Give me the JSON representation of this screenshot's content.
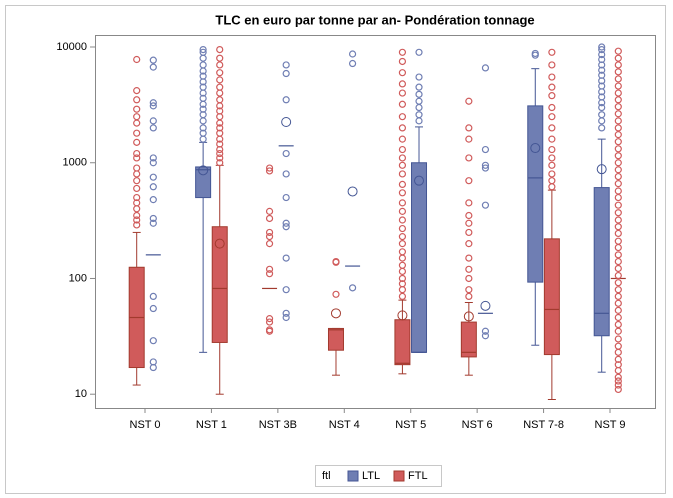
{
  "chart_data": {
    "type": "box",
    "title": "TLC en euro par tonne par an- Pondération tonnage",
    "categories": [
      "NST 0",
      "NST 1",
      "NST 3B",
      "NST 4",
      "NST 5",
      "NST 6",
      "NST 7-8",
      "NST 9"
    ],
    "log_scale": true,
    "ylim": [
      7.6,
      12700
    ],
    "yticks": [
      10,
      100,
      1000,
      10000
    ],
    "legend_title": "ftl",
    "legend_position": "bottom",
    "series": [
      {
        "name": "LTL",
        "color": "#6f7eb3",
        "line_color": "#445694",
        "values": [
          {
            "median": 160,
            "outliers": [
              7700,
              6700,
              3300,
              3100,
              2300,
              2000,
              1100,
              1000,
              750,
              620,
              480,
              330,
              300,
              70,
              55,
              29,
              19,
              17
            ]
          },
          {
            "low": 23,
            "q1": 500,
            "median": 870,
            "q3": 920,
            "high": 1500,
            "mean": 860,
            "outliers": [
              1600,
              1800,
              2000,
              2300,
              2600,
              2900,
              3200,
              3600,
              4000,
              4500,
              5000,
              5600,
              6200,
              7000,
              8000,
              9000,
              9500
            ]
          },
          {
            "median": 1400,
            "mean": 2250,
            "outliers": [
              7000,
              5900,
              3500,
              1200,
              800,
              500,
              300,
              280,
              150,
              80,
              50,
              46
            ]
          },
          {
            "median": 128,
            "mean": 565,
            "outliers": [
              8700,
              7200,
              83
            ]
          },
          {
            "low": 23,
            "q1": 23,
            "median": 23,
            "q3": 1000,
            "high": 2040,
            "mean": 700,
            "outliers": [
              2300,
              2600,
              3000,
              3400,
              3900,
              4500,
              5500,
              9000
            ]
          },
          {
            "median": 50,
            "mean": 58,
            "outliers": [
              6600,
              1300,
              950,
              900,
              430,
              35,
              32
            ]
          },
          {
            "low": 26.5,
            "q1": 93,
            "median": 740,
            "q3": 3100,
            "high": 6500,
            "mean": 1340,
            "outliers": [
              8500,
              8800
            ]
          },
          {
            "low": 15.5,
            "q1": 32,
            "median": 50,
            "q3": 610,
            "high": 1600,
            "mean": 880,
            "outliers": [
              2000,
              2300,
              2600,
              3000,
              3300,
              3700,
              4100,
              4600,
              5100,
              5700,
              6300,
              7000,
              7800,
              8600,
              9500,
              10000
            ]
          }
        ]
      },
      {
        "name": "FTL",
        "color": "#d05b5b",
        "line_color": "#a23a2e",
        "values": [
          {
            "low": 12,
            "q1": 17,
            "median": 46,
            "q3": 125,
            "high": 250,
            "outliers": [
              7800,
              4200,
              3500,
              2900,
              2500,
              2200,
              1800,
              1500,
              1200,
              1100,
              900,
              800,
              700,
              600,
              500,
              450,
              400,
              350,
              320,
              290
            ]
          },
          {
            "low": 10,
            "q1": 28,
            "median": 82,
            "q3": 280,
            "high": 950,
            "mean": 200,
            "outliers": [
              1000,
              1100,
              1200,
              1300,
              1450,
              1600,
              1800,
              2000,
              2200,
              2500,
              2800,
              3100,
              3500,
              4000,
              4500,
              5200,
              6000,
              7000,
              8000,
              9500
            ]
          },
          {
            "median": 82,
            "outliers": [
              900,
              850,
              380,
              330,
              250,
              230,
              200,
              120,
              110,
              45,
              42,
              36,
              35
            ]
          },
          {
            "low": 14.6,
            "q1": 24,
            "median": 36,
            "q3": 37,
            "high": 37,
            "mean": 50,
            "outliers": [
              140,
              138,
              73
            ]
          },
          {
            "low": 15,
            "q1": 18,
            "median": 18.5,
            "q3": 44,
            "high": 65,
            "mean": 48,
            "outliers": [
              70,
              80,
              90,
              100,
              115,
              130,
              150,
              170,
              200,
              230,
              270,
              320,
              380,
              450,
              550,
              650,
              800,
              950,
              1100,
              1300,
              1600,
              2000,
              2500,
              3200,
              4000,
              4800,
              6000,
              7500,
              9000
            ]
          },
          {
            "low": 14.6,
            "q1": 21,
            "median": 23,
            "q3": 42,
            "high": 62,
            "mean": 47,
            "outliers": [
              70,
              80,
              100,
              120,
              150,
              200,
              250,
              300,
              350,
              450,
              700,
              1100,
              1600,
              2000,
              3400
            ]
          },
          {
            "low": 9,
            "q1": 22,
            "median": 54,
            "q3": 220,
            "high": 580,
            "outliers": [
              620,
              700,
              800,
              950,
              1100,
              1300,
              1600,
              2000,
              2500,
              3000,
              3800,
              4500,
              5500,
              7000,
              9000
            ]
          },
          {
            "median": 100,
            "outliers": [
              11,
              12,
              13,
              14,
              16,
              18,
              20,
              23,
              26,
              30,
              35,
              40,
              46,
              53,
              61,
              70,
              80,
              92,
              106,
              122,
              140,
              160,
              185,
              210,
              245,
              280,
              320,
              370,
              430,
              500,
              570,
              660,
              760,
              870,
              1000,
              1150,
              1320,
              1520,
              1750,
              2000,
              2300,
              2650,
              3050,
              3500,
              4000,
              4600,
              5300,
              6100,
              7000,
              8000,
              9200
            ]
          }
        ]
      }
    ]
  }
}
